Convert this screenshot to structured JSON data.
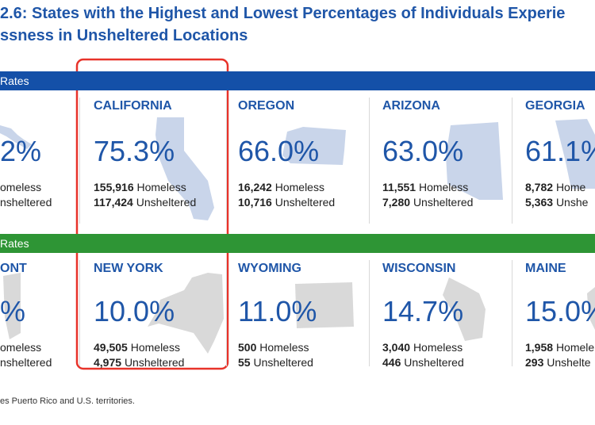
{
  "header": {
    "title_lines": [
      "2.6: States with the Highest and Lowest Percentages of Individuals Experie",
      "ssness in Unsheltered Locations"
    ]
  },
  "sections": [
    {
      "banner": "Rates",
      "cards": [
        {
          "percent": "2%",
          "homeless": {
            "label": "omeless"
          },
          "unsheltered": {
            "label": "nsheltered"
          }
        },
        {
          "name": "CALIFORNIA",
          "percent": "75.3%",
          "homeless": {
            "count": "155,916",
            "label": "Homeless"
          },
          "unsheltered": {
            "count": "117,424",
            "label": "Unsheltered"
          }
        },
        {
          "name": "OREGON",
          "percent": "66.0%",
          "homeless": {
            "count": "16,242",
            "label": "Homeless"
          },
          "unsheltered": {
            "count": "10,716",
            "label": "Unsheltered"
          }
        },
        {
          "name": "ARIZONA",
          "percent": "63.0%",
          "homeless": {
            "count": "11,551",
            "label": "Homeless"
          },
          "unsheltered": {
            "count": "7,280",
            "label": "Unsheltered"
          }
        },
        {
          "name": "GEORGIA",
          "percent": "61.1%",
          "homeless": {
            "count": "8,782",
            "label": "Home"
          },
          "unsheltered": {
            "count": "5,363",
            "label": "Unshe"
          }
        }
      ]
    },
    {
      "banner": "Rates",
      "cards": [
        {
          "name": "ONT",
          "percent": "%",
          "homeless": {
            "label": "omeless"
          },
          "unsheltered": {
            "label": "nsheltered"
          }
        },
        {
          "name": "NEW YORK",
          "percent": "10.0%",
          "homeless": {
            "count": "49,505",
            "label": "Homeless"
          },
          "unsheltered": {
            "count": "4,975",
            "label": "Unsheltered"
          }
        },
        {
          "name": "WYOMING",
          "percent": "11.0%",
          "homeless": {
            "count": "500",
            "label": "Homeless"
          },
          "unsheltered": {
            "count": "55",
            "label": "Unsheltered"
          }
        },
        {
          "name": "WISCONSIN",
          "percent": "14.7%",
          "homeless": {
            "count": "3,040",
            "label": "Homeless"
          },
          "unsheltered": {
            "count": "446",
            "label": "Unsheltered"
          }
        },
        {
          "name": "MAINE",
          "percent": "15.0%",
          "homeless": {
            "count": "1,958",
            "label": "Homele"
          },
          "unsheltered": {
            "count": "293",
            "label": "Unshelte"
          }
        }
      ]
    }
  ],
  "footnote": "es Puerto Rico and U.S. territories."
}
